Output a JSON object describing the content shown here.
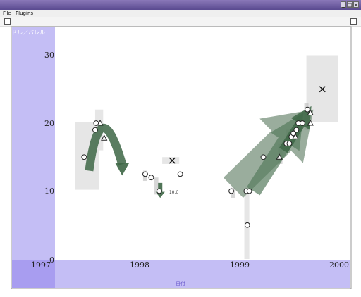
{
  "window": {
    "title_text": "",
    "minimize_label": "_",
    "maximize_label": "□",
    "close_label": "x"
  },
  "menu": {
    "items": [
      "File",
      "Plugins"
    ]
  },
  "chart_data": {
    "type": "scatter",
    "ylabel": "ドル／バレル",
    "xlabel": "日付",
    "xlim": [
      1997,
      2000
    ],
    "ylim": [
      0,
      30
    ],
    "x_ticks": [
      "1997",
      "1998",
      "1999",
      "2000"
    ],
    "y_ticks": [
      "0",
      "10",
      "20",
      "30"
    ],
    "annotation": "10.0",
    "colors": {
      "axis_band": "#c4bef5",
      "axis_corner": "#a89df0",
      "arrow": "#3d6645",
      "box": "#e3e3e3"
    },
    "circles": [
      {
        "x": 1997.46,
        "y": 15.0
      },
      {
        "x": 1997.57,
        "y": 19.0
      },
      {
        "x": 1997.58,
        "y": 20.0
      },
      {
        "x": 1998.07,
        "y": 12.5
      },
      {
        "x": 1998.13,
        "y": 12.0
      },
      {
        "x": 1998.21,
        "y": 10.0
      },
      {
        "x": 1998.42,
        "y": 12.5
      },
      {
        "x": 1998.93,
        "y": 10.0
      },
      {
        "x": 1999.08,
        "y": 10.0
      },
      {
        "x": 1999.11,
        "y": 10.0
      },
      {
        "x": 1999.09,
        "y": 5.0
      },
      {
        "x": 1999.25,
        "y": 15.0
      },
      {
        "x": 1999.48,
        "y": 17.0
      },
      {
        "x": 1999.51,
        "y": 17.0
      },
      {
        "x": 1999.53,
        "y": 18.0
      },
      {
        "x": 1999.55,
        "y": 18.5
      },
      {
        "x": 1999.58,
        "y": 19.0
      },
      {
        "x": 1999.6,
        "y": 20.0
      },
      {
        "x": 1999.64,
        "y": 20.0
      },
      {
        "x": 1999.69,
        "y": 22.0
      }
    ],
    "triangles": [
      {
        "x": 1997.62,
        "y": 20.0
      },
      {
        "x": 1997.66,
        "y": 17.8
      },
      {
        "x": 1999.41,
        "y": 15.0
      },
      {
        "x": 1999.57,
        "y": 18.0
      },
      {
        "x": 1999.72,
        "y": 21.5
      },
      {
        "x": 1999.72,
        "y": 20.0
      }
    ],
    "crosses": [
      {
        "x": 1998.34,
        "y": 14.5
      },
      {
        "x": 1999.84,
        "y": 25.0
      }
    ],
    "boxes": [
      {
        "x0": 1997.37,
        "x1": 1997.61,
        "y0": 10.2,
        "y1": 20.2
      },
      {
        "x0": 1997.57,
        "x1": 1997.65,
        "y0": 16.0,
        "y1": 22.0
      },
      {
        "x0": 1998.24,
        "x1": 1998.41,
        "y0": 14.0,
        "y1": 15.0
      },
      {
        "x0": 1999.06,
        "x1": 1999.11,
        "y0": 0.0,
        "y1": 10.0
      },
      {
        "x0": 1999.68,
        "x1": 2000.0,
        "y0": 20.2,
        "y1": 30.0
      }
    ],
    "arrows": [
      {
        "type": "curve",
        "from": [
          1997.51,
          13.0
        ],
        "via": [
          1997.62,
          22.0
        ],
        "to": [
          1997.84,
          12.5
        ]
      },
      {
        "type": "straight",
        "from": [
          1998.22,
          11.2
        ],
        "to": [
          1998.22,
          9.0
        ]
      },
      {
        "type": "straight",
        "from": [
          1998.95,
          10.5
        ],
        "to": [
          1999.75,
          22.0
        ]
      },
      {
        "type": "straight",
        "from": [
          1999.15,
          10.0
        ],
        "to": [
          1999.65,
          21.5
        ]
      },
      {
        "type": "straight",
        "from": [
          1999.45,
          16.0
        ],
        "to": [
          1999.73,
          22.5
        ]
      }
    ]
  }
}
